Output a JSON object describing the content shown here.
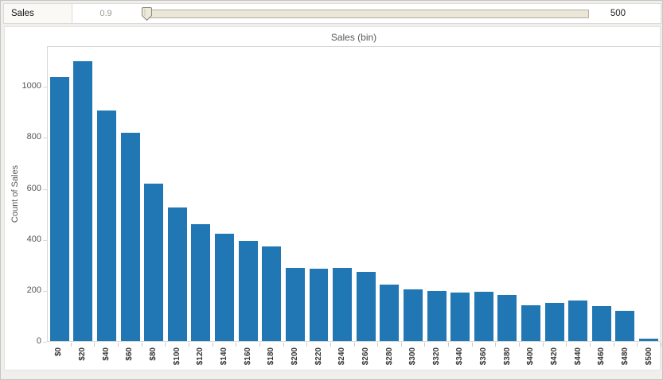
{
  "controls": {
    "param_name": "Sales",
    "param_value": "0.9",
    "param_max": "500",
    "slider_track_color": "#eae7d8"
  },
  "chart": {
    "title": "Sales (bin)",
    "ylabel": "Count of Sales"
  },
  "chart_data": {
    "type": "bar",
    "title": "Sales (bin)",
    "xlabel": "Sales (bin)",
    "ylabel": "Count of Sales",
    "categories": [
      "$0",
      "$20",
      "$40",
      "$60",
      "$80",
      "$100",
      "$120",
      "$140",
      "$160",
      "$180",
      "$200",
      "$220",
      "$240",
      "$260",
      "$280",
      "$300",
      "$320",
      "$340",
      "$360",
      "$380",
      "$400",
      "$420",
      "$440",
      "$460",
      "$480",
      "$500"
    ],
    "values": [
      1040,
      1105,
      908,
      820,
      622,
      528,
      462,
      424,
      394,
      373,
      288,
      284,
      289,
      272,
      222,
      205,
      196,
      192,
      193,
      181,
      142,
      151,
      160,
      139,
      118,
      8
    ],
    "yticks": [
      0,
      200,
      400,
      600,
      800,
      1000
    ],
    "ylim": [
      0,
      1160
    ],
    "bar_color": "#2077b4",
    "grid": false,
    "legend_position": "none"
  }
}
